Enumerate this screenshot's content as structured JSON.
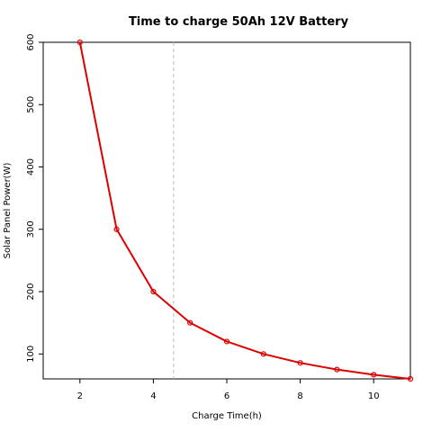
{
  "chart_data": {
    "type": "line",
    "title": "Time to charge 50Ah 12V Battery",
    "xlabel": "Charge Time(h)",
    "ylabel": "Solar Panel Power(W)",
    "x": [
      2,
      3,
      4,
      5,
      6,
      7,
      8,
      9,
      10,
      11
    ],
    "series": [
      {
        "values": [
          600,
          300,
          200,
          150,
          120,
          100,
          85.7,
          75,
          66.7,
          60
        ],
        "color": "#dd0000"
      }
    ],
    "xlim": [
      1,
      11
    ],
    "ylim": [
      60,
      600
    ],
    "xticks": [
      2,
      4,
      6,
      8,
      10
    ],
    "yticks": [
      100,
      200,
      300,
      400,
      500,
      600
    ],
    "vline": {
      "x": 4.55,
      "color": "#bbbbbb"
    },
    "grid": false,
    "markers": "open-circle"
  }
}
